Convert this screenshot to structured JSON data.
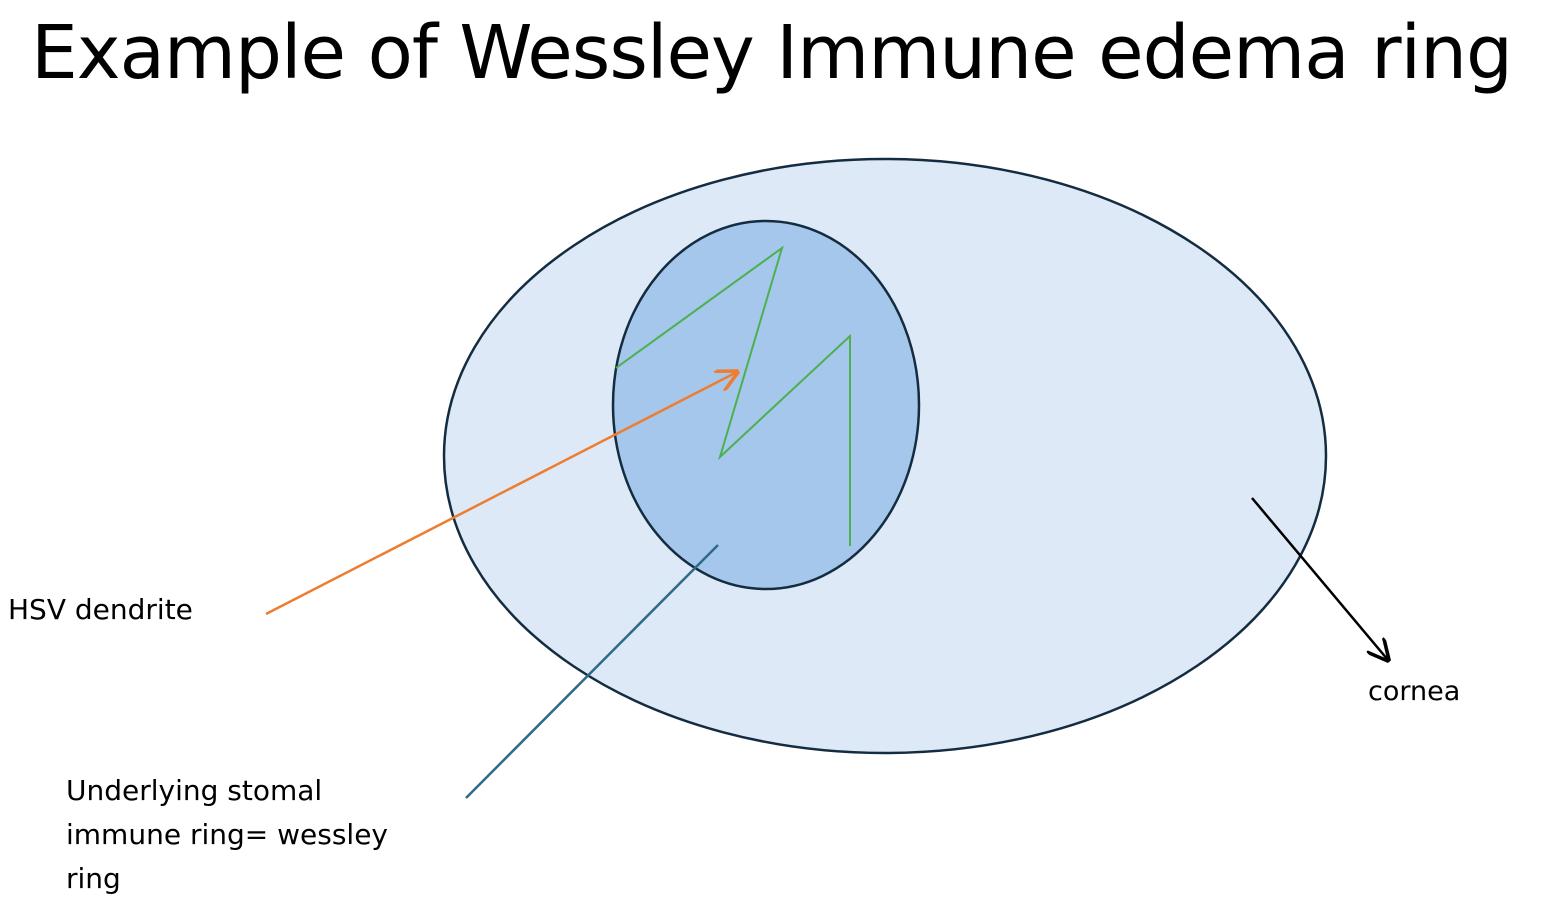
{
  "title": "Example of Wessley Immune edema ring",
  "labels": {
    "hsv_dendrite": "HSV dendrite",
    "cornea": "cornea",
    "ring_line1": "Underlying stomal",
    "ring_line2": "immune ring= wessley",
    "ring_line3": "ring"
  },
  "colors": {
    "cornea_fill": "#dde9f6",
    "ring_fill": "#a5c7eb",
    "outline": "#142c40",
    "dendrite": "#4caf50",
    "hsv_arrow": "#ed7d31",
    "ring_pointer": "#2e6a8a",
    "cornea_arrow": "#000000"
  }
}
